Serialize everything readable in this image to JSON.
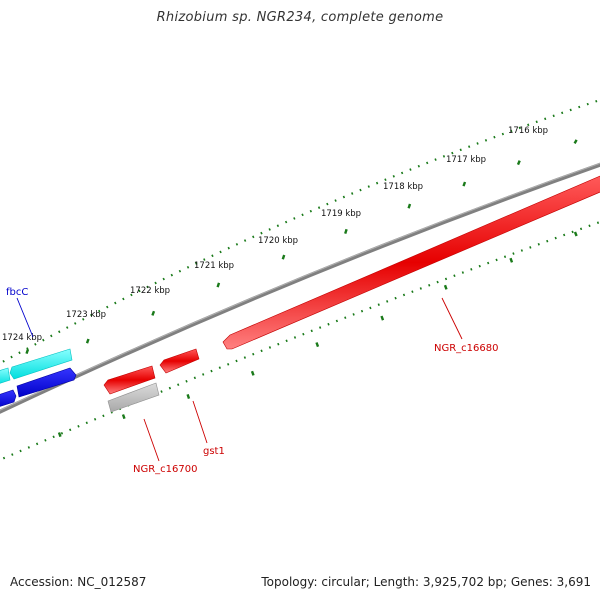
{
  "title": "Rhizobium sp. NGR234, complete genome",
  "footer": {
    "accession": "Accession: NC_012587",
    "summary": "Topology: circular; Length: 3,925,702 bp; Genes: 3,691"
  },
  "colors": {
    "tick": "#1a7a1a",
    "backbone": "#808080",
    "forward_gene": "#00eaea",
    "forward_gene_dark": "#0000dd",
    "reverse_gene": "#e60000",
    "pseudo_gene": "#b8b8b8",
    "label_blue": "#0000cc",
    "label_red": "#cc0000"
  },
  "scale": {
    "unit": "kbp",
    "labels": [
      "1716 kbp",
      "1717 kbp",
      "1718 kbp",
      "1719 kbp",
      "1720 kbp",
      "1721 kbp",
      "1722 kbp",
      "1723 kbp",
      "1724 kbp"
    ]
  },
  "genes": [
    {
      "name": "fbcC",
      "strand": "forward",
      "color": "label_blue"
    },
    {
      "name": "NGR_c16680",
      "strand": "reverse",
      "color": "label_red"
    },
    {
      "name": "gst1",
      "strand": "reverse",
      "color": "label_red"
    },
    {
      "name": "NGR_c16700",
      "strand": "reverse",
      "color": "label_red"
    }
  ]
}
